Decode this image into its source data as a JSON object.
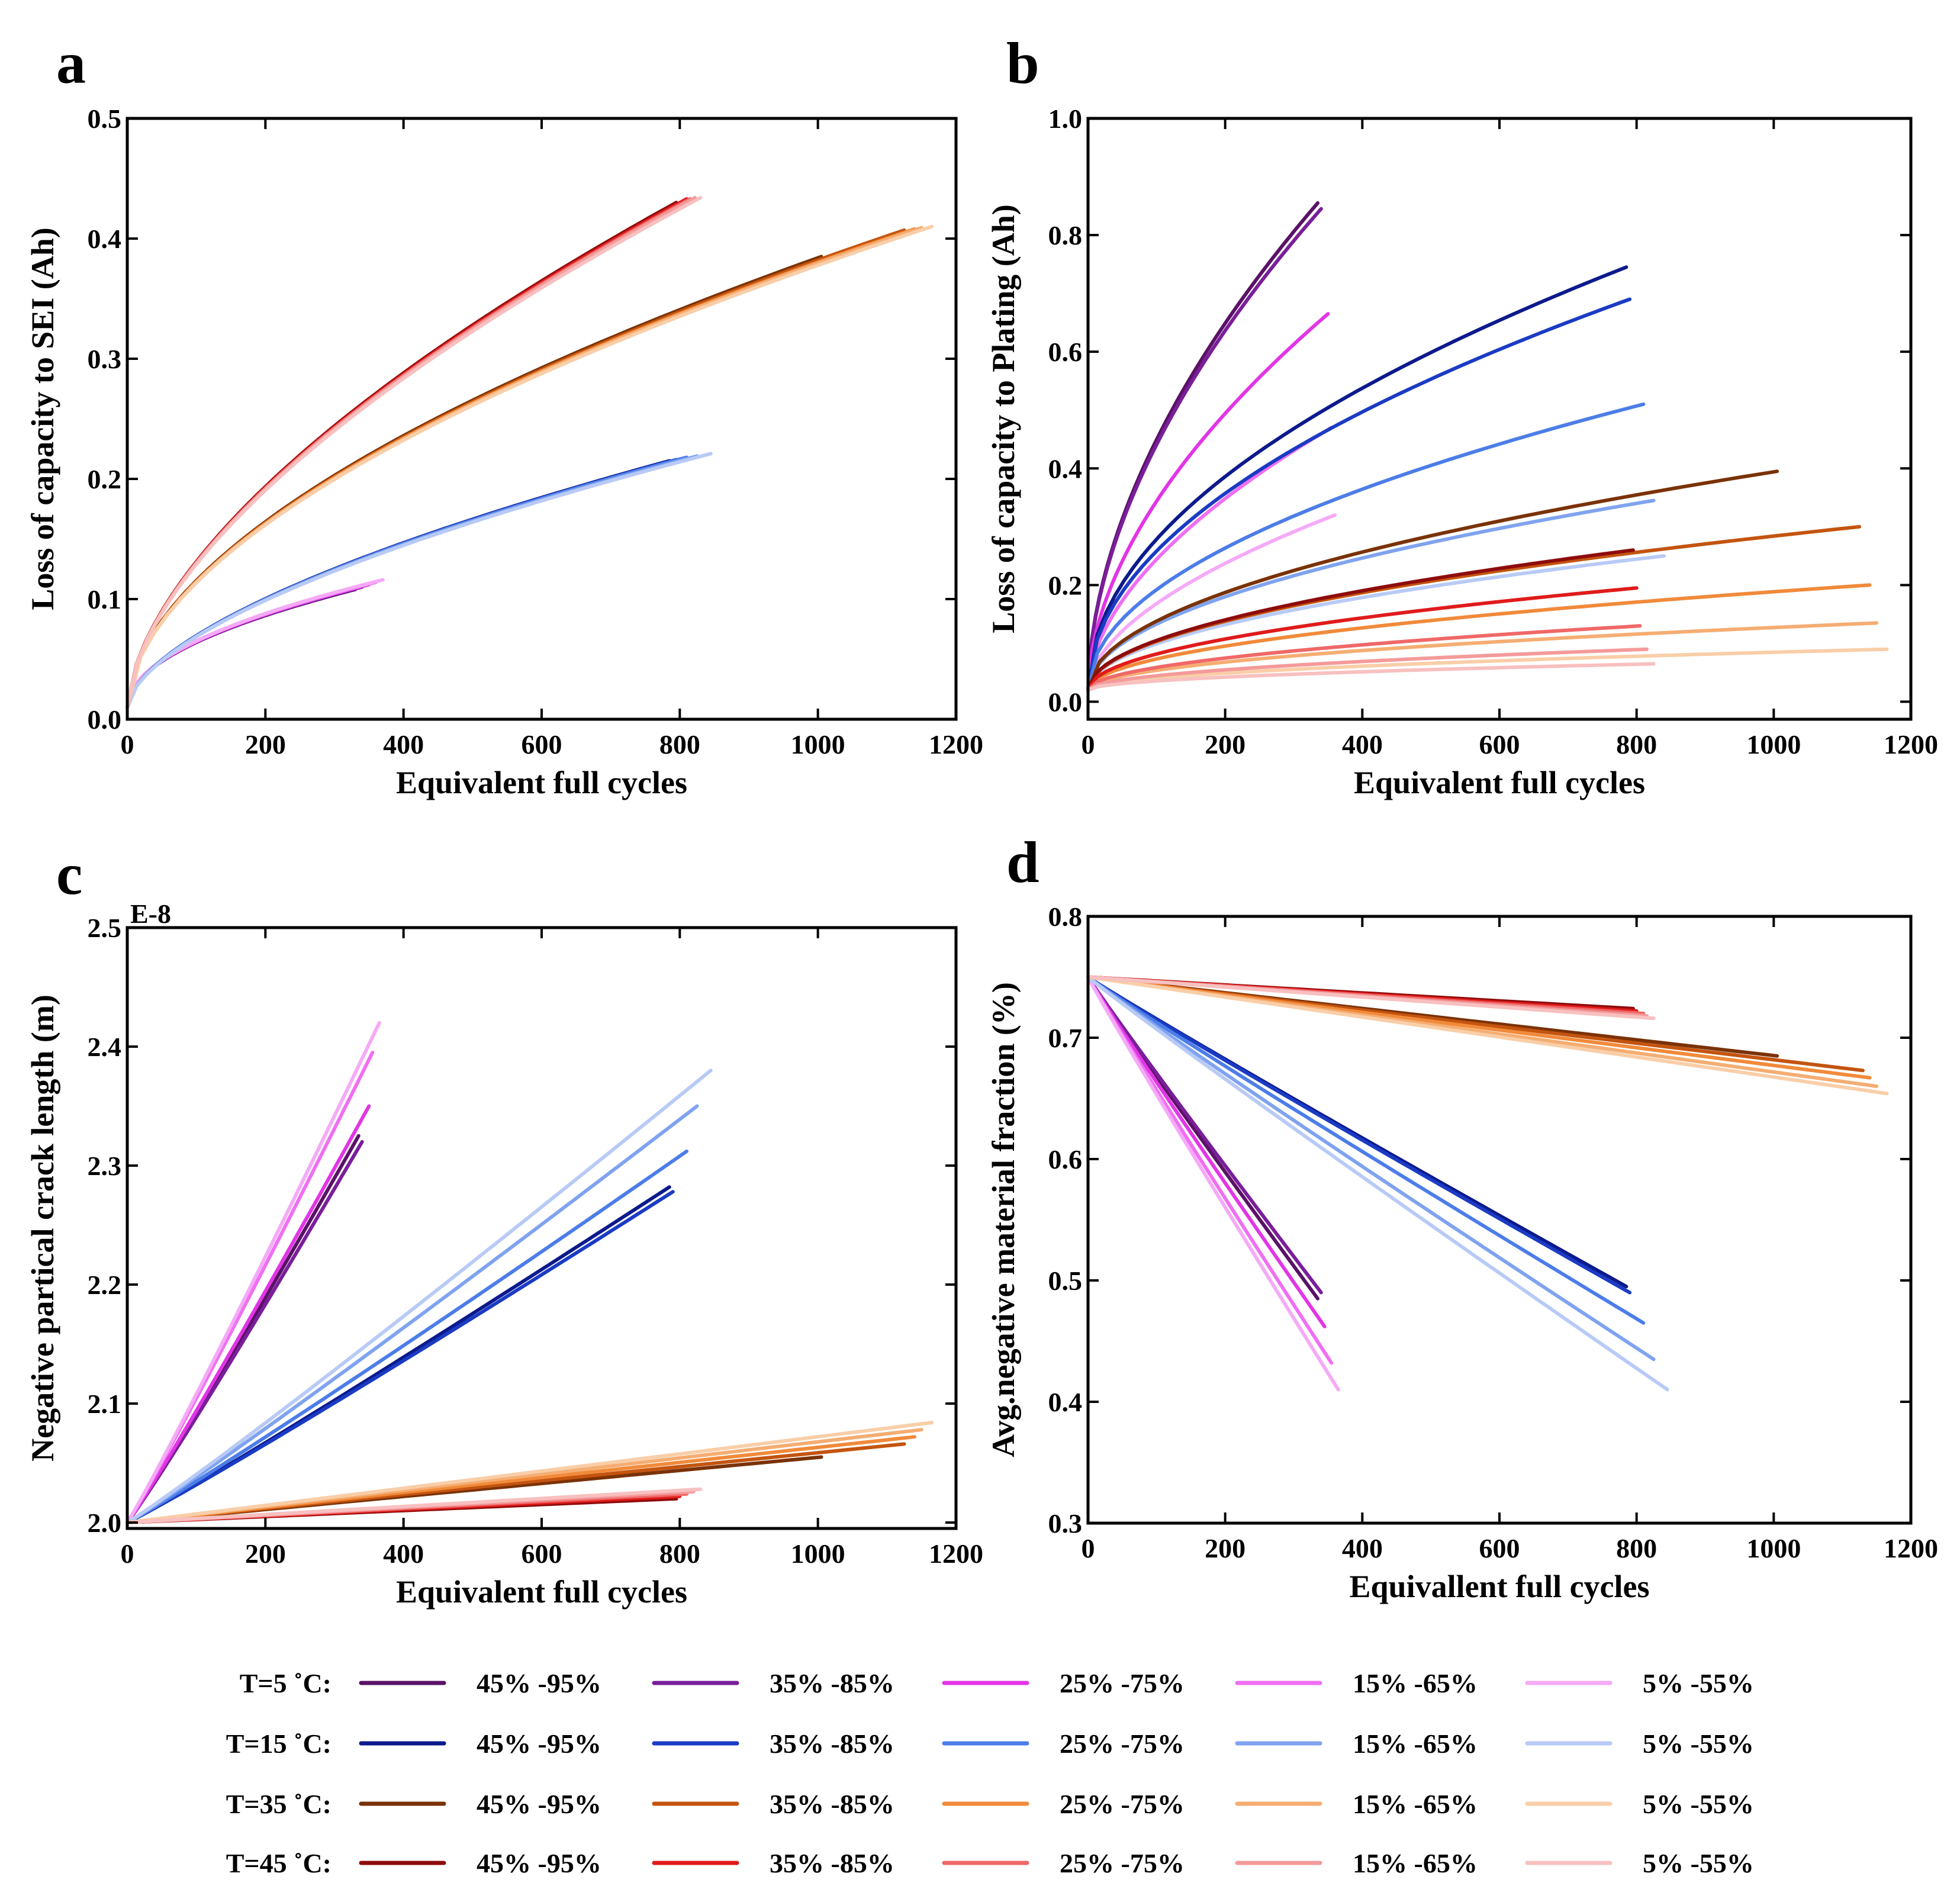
{
  "colors": {
    "T5": [
      "#5a1266",
      "#7a1e9a",
      "#e235e6",
      "#ef6ff2",
      "#f5aaf7"
    ],
    "T15": [
      "#0c1a8c",
      "#1a3bc4",
      "#4c7de8",
      "#7fa3ef",
      "#b8caf6"
    ],
    "T35": [
      "#7a3206",
      "#c4540f",
      "#f18a3a",
      "#f5ad72",
      "#f9cea8"
    ],
    "T45": [
      "#8e0c0c",
      "#e01b1b",
      "#f06868",
      "#f49a9a",
      "#f8c0c0"
    ]
  },
  "legend": {
    "rows": [
      {
        "label": "T=5 ˚C:",
        "group": "T5",
        "items": [
          "45% -95%",
          "35% -85%",
          "25% -75%",
          "15% -65%",
          "5% -55%"
        ]
      },
      {
        "label": "T=15 ˚C:",
        "group": "T15",
        "items": [
          "45% -95%",
          "35% -85%",
          "25% -75%",
          "15% -65%",
          "5% -55%"
        ]
      },
      {
        "label": "T=35 ˚C:",
        "group": "T35",
        "items": [
          "45% -95%",
          "35% -85%",
          "25% -75%",
          "15% -65%",
          "5% -55%"
        ]
      },
      {
        "label": "T=45 ˚C:",
        "group": "T45",
        "items": [
          "45% -95%",
          "35% -85%",
          "25% -75%",
          "15% -65%",
          "5% -55%"
        ]
      }
    ]
  },
  "chart_data": [
    {
      "panel": "a",
      "type": "line",
      "xlabel": "Equivalent full cycles",
      "ylabel": "Loss of capacity to SEI (Ah)",
      "xlim": [
        0,
        1200
      ],
      "ylim": [
        0,
        0.5
      ],
      "xticks": [
        0,
        200,
        400,
        600,
        800,
        1000,
        1200
      ],
      "yticks": [
        0.0,
        0.1,
        0.2,
        0.3,
        0.4,
        0.5
      ],
      "ytick_labels": [
        "0.0",
        "0.1",
        "0.2",
        "0.3",
        "0.4",
        "0.5"
      ],
      "exponent_label": "",
      "series": [
        {
          "group": "T5",
          "idx": 0,
          "x_end": 330,
          "y_end": 0.108,
          "y_start": 0.01,
          "p": 0.5
        },
        {
          "group": "T5",
          "idx": 1,
          "x_end": 340,
          "y_end": 0.11,
          "y_start": 0.01,
          "p": 0.5
        },
        {
          "group": "T5",
          "idx": 2,
          "x_end": 350,
          "y_end": 0.112,
          "y_start": 0.01,
          "p": 0.5
        },
        {
          "group": "T5",
          "idx": 3,
          "x_end": 360,
          "y_end": 0.114,
          "y_start": 0.01,
          "p": 0.5
        },
        {
          "group": "T5",
          "idx": 4,
          "x_end": 370,
          "y_end": 0.116,
          "y_start": 0.01,
          "p": 0.5
        },
        {
          "group": "T15",
          "idx": 0,
          "x_end": 785,
          "y_end": 0.215,
          "y_start": 0.01,
          "p": 0.6
        },
        {
          "group": "T15",
          "idx": 1,
          "x_end": 795,
          "y_end": 0.216,
          "y_start": 0.01,
          "p": 0.6
        },
        {
          "group": "T15",
          "idx": 2,
          "x_end": 810,
          "y_end": 0.218,
          "y_start": 0.01,
          "p": 0.6
        },
        {
          "group": "T15",
          "idx": 3,
          "x_end": 825,
          "y_end": 0.219,
          "y_start": 0.01,
          "p": 0.6
        },
        {
          "group": "T15",
          "idx": 4,
          "x_end": 845,
          "y_end": 0.221,
          "y_start": 0.01,
          "p": 0.6
        },
        {
          "group": "T35",
          "idx": 0,
          "x_end": 1005,
          "y_end": 0.385,
          "y_start": 0.01,
          "p": 0.55
        },
        {
          "group": "T35",
          "idx": 1,
          "x_end": 1125,
          "y_end": 0.407,
          "y_start": 0.01,
          "p": 0.55
        },
        {
          "group": "T35",
          "idx": 2,
          "x_end": 1140,
          "y_end": 0.408,
          "y_start": 0.01,
          "p": 0.55
        },
        {
          "group": "T35",
          "idx": 3,
          "x_end": 1150,
          "y_end": 0.409,
          "y_start": 0.01,
          "p": 0.55
        },
        {
          "group": "T35",
          "idx": 4,
          "x_end": 1165,
          "y_end": 0.41,
          "y_start": 0.01,
          "p": 0.55
        },
        {
          "group": "T45",
          "idx": 0,
          "x_end": 795,
          "y_end": 0.43,
          "y_start": 0.01,
          "p": 0.6
        },
        {
          "group": "T45",
          "idx": 1,
          "x_end": 810,
          "y_end": 0.433,
          "y_start": 0.01,
          "p": 0.6
        },
        {
          "group": "T45",
          "idx": 2,
          "x_end": 815,
          "y_end": 0.433,
          "y_start": 0.01,
          "p": 0.6
        },
        {
          "group": "T45",
          "idx": 3,
          "x_end": 822,
          "y_end": 0.434,
          "y_start": 0.01,
          "p": 0.6
        },
        {
          "group": "T45",
          "idx": 4,
          "x_end": 830,
          "y_end": 0.434,
          "y_start": 0.01,
          "p": 0.6
        }
      ]
    },
    {
      "panel": "b",
      "type": "line",
      "xlabel": "Equivalent full cycles",
      "ylabel": "Loss of capacity to Plating (Ah)",
      "xlim": [
        0,
        1200
      ],
      "ylim": [
        -0.03,
        1.0
      ],
      "xticks": [
        0,
        200,
        400,
        600,
        800,
        1000,
        1200
      ],
      "yticks": [
        0.0,
        0.2,
        0.4,
        0.6,
        0.8,
        1.0
      ],
      "ytick_labels": [
        "0.0",
        "0.2",
        "0.4",
        "0.6",
        "0.8",
        "1.0"
      ],
      "exponent_label": "",
      "series": [
        {
          "group": "T5",
          "idx": 0,
          "x_end": 335,
          "y_end": 0.855,
          "y_start": 0.02,
          "p": 0.55
        },
        {
          "group": "T5",
          "idx": 1,
          "x_end": 340,
          "y_end": 0.845,
          "y_start": 0.02,
          "p": 0.55
        },
        {
          "group": "T5",
          "idx": 2,
          "x_end": 350,
          "y_end": 0.665,
          "y_start": 0.02,
          "p": 0.55
        },
        {
          "group": "T5",
          "idx": 3,
          "x_end": 355,
          "y_end": 0.47,
          "y_start": 0.02,
          "p": 0.55
        },
        {
          "group": "T5",
          "idx": 4,
          "x_end": 360,
          "y_end": 0.32,
          "y_start": 0.02,
          "p": 0.55
        },
        {
          "group": "T15",
          "idx": 0,
          "x_end": 785,
          "y_end": 0.745,
          "y_start": 0.02,
          "p": 0.5
        },
        {
          "group": "T15",
          "idx": 1,
          "x_end": 790,
          "y_end": 0.69,
          "y_start": 0.02,
          "p": 0.5
        },
        {
          "group": "T15",
          "idx": 2,
          "x_end": 810,
          "y_end": 0.51,
          "y_start": 0.02,
          "p": 0.5
        },
        {
          "group": "T15",
          "idx": 3,
          "x_end": 825,
          "y_end": 0.345,
          "y_start": 0.02,
          "p": 0.5
        },
        {
          "group": "T15",
          "idx": 4,
          "x_end": 840,
          "y_end": 0.25,
          "y_start": 0.02,
          "p": 0.5
        },
        {
          "group": "T35",
          "idx": 0,
          "x_end": 1005,
          "y_end": 0.395,
          "y_start": 0.02,
          "p": 0.5
        },
        {
          "group": "T35",
          "idx": 1,
          "x_end": 1125,
          "y_end": 0.3,
          "y_start": 0.02,
          "p": 0.5
        },
        {
          "group": "T35",
          "idx": 2,
          "x_end": 1140,
          "y_end": 0.2,
          "y_start": 0.02,
          "p": 0.5
        },
        {
          "group": "T35",
          "idx": 3,
          "x_end": 1150,
          "y_end": 0.135,
          "y_start": 0.02,
          "p": 0.5
        },
        {
          "group": "T35",
          "idx": 4,
          "x_end": 1165,
          "y_end": 0.09,
          "y_start": 0.02,
          "p": 0.5
        },
        {
          "group": "T45",
          "idx": 0,
          "x_end": 795,
          "y_end": 0.26,
          "y_start": 0.02,
          "p": 0.5
        },
        {
          "group": "T45",
          "idx": 1,
          "x_end": 800,
          "y_end": 0.195,
          "y_start": 0.02,
          "p": 0.5
        },
        {
          "group": "T45",
          "idx": 2,
          "x_end": 805,
          "y_end": 0.13,
          "y_start": 0.02,
          "p": 0.5
        },
        {
          "group": "T45",
          "idx": 3,
          "x_end": 815,
          "y_end": 0.09,
          "y_start": 0.02,
          "p": 0.5
        },
        {
          "group": "T45",
          "idx": 4,
          "x_end": 825,
          "y_end": 0.065,
          "y_start": 0.02,
          "p": 0.5
        }
      ]
    },
    {
      "panel": "c",
      "type": "line",
      "xlabel": "Equivalent full cycles",
      "ylabel": "Negative partical crack length (m)",
      "xlim": [
        0,
        1200
      ],
      "ylim": [
        1.995,
        2.5
      ],
      "xticks": [
        0,
        200,
        400,
        600,
        800,
        1000,
        1200
      ],
      "yticks": [
        2.0,
        2.1,
        2.2,
        2.3,
        2.4,
        2.5
      ],
      "ytick_labels": [
        "2.0",
        "2.1",
        "2.2",
        "2.3",
        "2.4",
        "2.5"
      ],
      "exponent_label": "E-8",
      "series": [
        {
          "group": "T5",
          "idx": 0,
          "x_end": 335,
          "y_end": 2.325,
          "y_start": 2.0,
          "p": 1.05
        },
        {
          "group": "T5",
          "idx": 1,
          "x_end": 340,
          "y_end": 2.32,
          "y_start": 2.0,
          "p": 1.05
        },
        {
          "group": "T5",
          "idx": 2,
          "x_end": 350,
          "y_end": 2.35,
          "y_start": 2.0,
          "p": 1.05
        },
        {
          "group": "T5",
          "idx": 3,
          "x_end": 355,
          "y_end": 2.395,
          "y_start": 2.0,
          "p": 1.05
        },
        {
          "group": "T5",
          "idx": 4,
          "x_end": 365,
          "y_end": 2.42,
          "y_start": 2.0,
          "p": 1.05
        },
        {
          "group": "T15",
          "idx": 0,
          "x_end": 785,
          "y_end": 2.282,
          "y_start": 2.0,
          "p": 1.05
        },
        {
          "group": "T15",
          "idx": 1,
          "x_end": 790,
          "y_end": 2.278,
          "y_start": 2.0,
          "p": 1.05
        },
        {
          "group": "T15",
          "idx": 2,
          "x_end": 810,
          "y_end": 2.312,
          "y_start": 2.0,
          "p": 1.05
        },
        {
          "group": "T15",
          "idx": 3,
          "x_end": 825,
          "y_end": 2.35,
          "y_start": 2.0,
          "p": 1.05
        },
        {
          "group": "T15",
          "idx": 4,
          "x_end": 845,
          "y_end": 2.38,
          "y_start": 2.0,
          "p": 1.05
        },
        {
          "group": "T35",
          "idx": 0,
          "x_end": 1005,
          "y_end": 2.055,
          "y_start": 2.0,
          "p": 1.0
        },
        {
          "group": "T35",
          "idx": 1,
          "x_end": 1125,
          "y_end": 2.066,
          "y_start": 2.0,
          "p": 1.0
        },
        {
          "group": "T35",
          "idx": 2,
          "x_end": 1140,
          "y_end": 2.072,
          "y_start": 2.0,
          "p": 1.0
        },
        {
          "group": "T35",
          "idx": 3,
          "x_end": 1150,
          "y_end": 2.078,
          "y_start": 2.0,
          "p": 1.0
        },
        {
          "group": "T35",
          "idx": 4,
          "x_end": 1165,
          "y_end": 2.084,
          "y_start": 2.0,
          "p": 1.0
        },
        {
          "group": "T45",
          "idx": 0,
          "x_end": 795,
          "y_end": 2.02,
          "y_start": 2.0,
          "p": 1.0
        },
        {
          "group": "T45",
          "idx": 1,
          "x_end": 800,
          "y_end": 2.022,
          "y_start": 2.0,
          "p": 1.0
        },
        {
          "group": "T45",
          "idx": 2,
          "x_end": 810,
          "y_end": 2.024,
          "y_start": 2.0,
          "p": 1.0
        },
        {
          "group": "T45",
          "idx": 3,
          "x_end": 820,
          "y_end": 2.026,
          "y_start": 2.0,
          "p": 1.0
        },
        {
          "group": "T45",
          "idx": 4,
          "x_end": 830,
          "y_end": 2.028,
          "y_start": 2.0,
          "p": 1.0
        }
      ]
    },
    {
      "panel": "d",
      "type": "line",
      "xlabel": "Equivallent full cycles",
      "ylabel": "Avg.negative material fraction (%)",
      "xlim": [
        0,
        1200
      ],
      "ylim": [
        0.3,
        0.8
      ],
      "xticks": [
        0,
        200,
        400,
        600,
        800,
        1000,
        1200
      ],
      "yticks": [
        0.3,
        0.4,
        0.5,
        0.6,
        0.7,
        0.8
      ],
      "ytick_labels": [
        "0.3",
        "0.4",
        "0.5",
        "0.6",
        "0.7",
        "0.8"
      ],
      "exponent_label": "",
      "series": [
        {
          "group": "T5",
          "idx": 0,
          "x_end": 335,
          "y_end": 0.485,
          "y_start": 0.75,
          "p": 0.97
        },
        {
          "group": "T5",
          "idx": 1,
          "x_end": 340,
          "y_end": 0.49,
          "y_start": 0.75,
          "p": 0.97
        },
        {
          "group": "T5",
          "idx": 2,
          "x_end": 345,
          "y_end": 0.462,
          "y_start": 0.75,
          "p": 0.97
        },
        {
          "group": "T5",
          "idx": 3,
          "x_end": 355,
          "y_end": 0.432,
          "y_start": 0.75,
          "p": 0.97
        },
        {
          "group": "T5",
          "idx": 4,
          "x_end": 365,
          "y_end": 0.41,
          "y_start": 0.75,
          "p": 0.97
        },
        {
          "group": "T15",
          "idx": 0,
          "x_end": 785,
          "y_end": 0.495,
          "y_start": 0.75,
          "p": 0.97
        },
        {
          "group": "T15",
          "idx": 1,
          "x_end": 790,
          "y_end": 0.49,
          "y_start": 0.75,
          "p": 0.97
        },
        {
          "group": "T15",
          "idx": 2,
          "x_end": 810,
          "y_end": 0.465,
          "y_start": 0.75,
          "p": 0.97
        },
        {
          "group": "T15",
          "idx": 3,
          "x_end": 825,
          "y_end": 0.435,
          "y_start": 0.75,
          "p": 0.97
        },
        {
          "group": "T15",
          "idx": 4,
          "x_end": 845,
          "y_end": 0.41,
          "y_start": 0.75,
          "p": 0.97
        },
        {
          "group": "T35",
          "idx": 0,
          "x_end": 1005,
          "y_end": 0.685,
          "y_start": 0.75,
          "p": 1.0
        },
        {
          "group": "T35",
          "idx": 1,
          "x_end": 1130,
          "y_end": 0.673,
          "y_start": 0.75,
          "p": 1.0
        },
        {
          "group": "T35",
          "idx": 2,
          "x_end": 1140,
          "y_end": 0.667,
          "y_start": 0.75,
          "p": 1.0
        },
        {
          "group": "T35",
          "idx": 3,
          "x_end": 1150,
          "y_end": 0.66,
          "y_start": 0.75,
          "p": 1.0
        },
        {
          "group": "T35",
          "idx": 4,
          "x_end": 1165,
          "y_end": 0.654,
          "y_start": 0.75,
          "p": 1.0
        },
        {
          "group": "T45",
          "idx": 0,
          "x_end": 795,
          "y_end": 0.724,
          "y_start": 0.75,
          "p": 1.0
        },
        {
          "group": "T45",
          "idx": 1,
          "x_end": 800,
          "y_end": 0.722,
          "y_start": 0.75,
          "p": 1.0
        },
        {
          "group": "T45",
          "idx": 2,
          "x_end": 810,
          "y_end": 0.72,
          "y_start": 0.75,
          "p": 1.0
        },
        {
          "group": "T45",
          "idx": 3,
          "x_end": 815,
          "y_end": 0.718,
          "y_start": 0.75,
          "p": 1.0
        },
        {
          "group": "T45",
          "idx": 4,
          "x_end": 825,
          "y_end": 0.716,
          "y_start": 0.75,
          "p": 1.0
        }
      ]
    }
  ]
}
